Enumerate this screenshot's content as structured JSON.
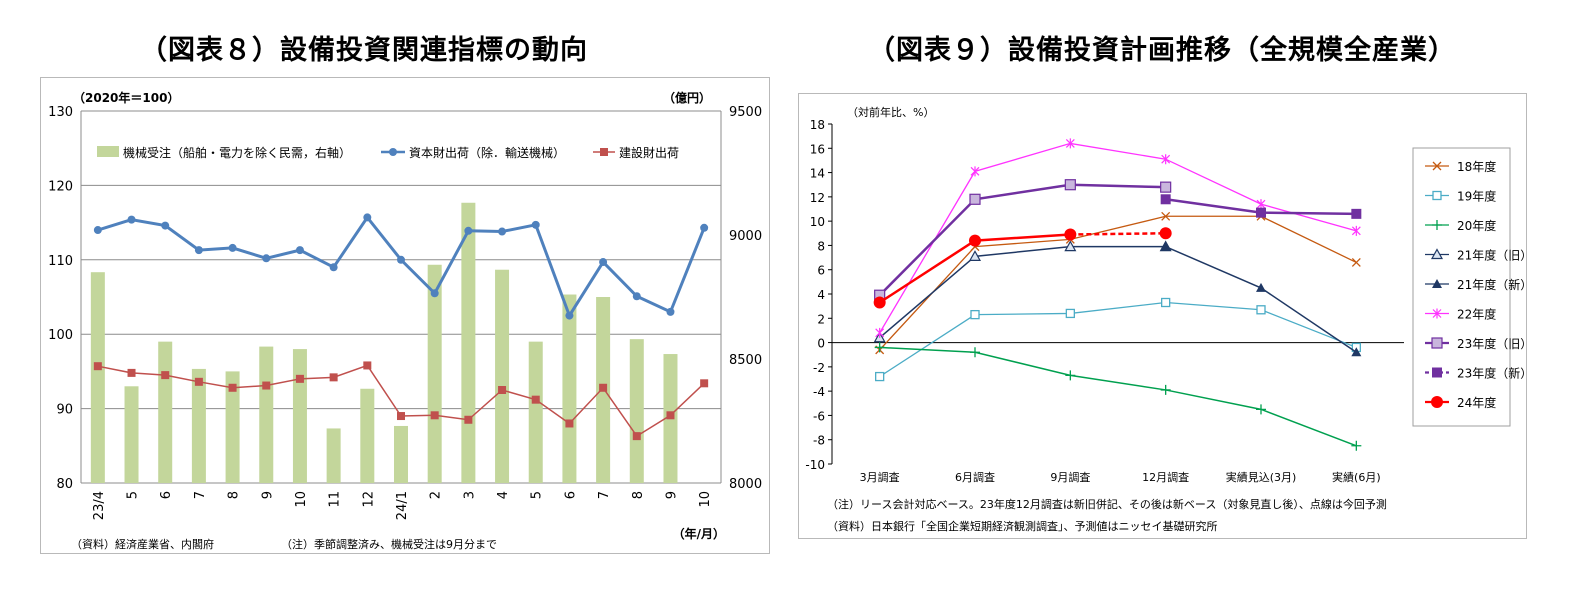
{
  "titles": {
    "left": "（図表８）設備投資関連指標の動向",
    "right": "（図表９）設備投資計画推移（全規模全産業）"
  },
  "left_notes": {
    "unit_left": "（2020年＝100）",
    "unit_right": "（億円）",
    "source": "（資料）経済産業省、内閣府",
    "note": "（注）季節調整済み、機械受注は9月分まで",
    "x_unit": "（年/月）"
  },
  "right_notes": {
    "unit": "（対前年比、%）",
    "note": "（注）リース会計対応ベース。23年度12月調査は新旧併記、その後は新ベース（対象見直し後）、点線は今回予測",
    "source": "（資料）日本銀行「全国企業短期経済観測調査」、予測値はニッセイ基礎研究所"
  },
  "colors": {
    "bar": "#c3d69b",
    "capital_goods": "#4f81bd",
    "construction": "#c0504d",
    "fy18": "#c55a11",
    "fy19": "#4bacc6",
    "fy20": "#00a04f",
    "fy21": "#1f3864",
    "fy22": "#ff33ff",
    "fy23": "#7030a0",
    "fy24": "#ff0000"
  },
  "chart_data": [
    {
      "type": "bar",
      "categories": [
        "23/4",
        "5",
        "6",
        "7",
        "8",
        "9",
        "10",
        "11",
        "12",
        "24/1",
        "2",
        "3",
        "4",
        "5",
        "6",
        "7",
        "8",
        "9",
        "10"
      ],
      "ylim_left": [
        80,
        130
      ],
      "yticks_left": [
        80,
        90,
        100,
        110,
        120,
        130
      ],
      "ylim_right": [
        8000,
        9500
      ],
      "yticks_right": [
        8000,
        8500,
        9000,
        9500
      ],
      "series": [
        {
          "name": "機械受注（船舶・電力を除く民需，右軸）",
          "type": "bar",
          "axis": "right",
          "values": [
            8850,
            8390,
            8570,
            8460,
            8450,
            8550,
            8540,
            8220,
            8380,
            8230,
            8880,
            9130,
            8860,
            8570,
            8760,
            8750,
            8580,
            8520,
            null
          ]
        },
        {
          "name": "資本財出荷（除．輸送機械）",
          "type": "line",
          "axis": "left",
          "values": [
            114.0,
            115.4,
            114.6,
            111.3,
            111.6,
            110.2,
            111.3,
            109.0,
            115.7,
            110.0,
            105.5,
            113.9,
            113.8,
            114.7,
            102.5,
            109.7,
            105.1,
            103.0,
            114.3
          ]
        },
        {
          "name": "建設財出荷",
          "type": "line",
          "axis": "left",
          "values": [
            95.7,
            94.8,
            94.5,
            93.6,
            92.8,
            93.1,
            94.0,
            94.2,
            95.8,
            89.0,
            89.1,
            88.5,
            92.5,
            91.2,
            88.0,
            92.8,
            86.3,
            89.1,
            93.4
          ]
        }
      ]
    },
    {
      "type": "line",
      "categories": [
        "3月調査",
        "6月調査",
        "9月調査",
        "12月調査",
        "実績見込(3月)",
        "実績(6月)"
      ],
      "ylim": [
        -10,
        18
      ],
      "yticks": [
        -10,
        -8,
        -6,
        -4,
        -2,
        0,
        2,
        4,
        6,
        8,
        10,
        12,
        14,
        16,
        18
      ],
      "series": [
        {
          "name": "18年度",
          "marker": "x",
          "values": [
            -0.6,
            7.9,
            8.5,
            10.4,
            10.4,
            6.6
          ]
        },
        {
          "name": "19年度",
          "marker": "square-open",
          "values": [
            -2.8,
            2.3,
            2.4,
            3.3,
            2.7,
            -0.4
          ]
        },
        {
          "name": "20年度",
          "marker": "plus",
          "values": [
            -0.4,
            -0.8,
            -2.7,
            -3.9,
            -5.5,
            -8.5
          ]
        },
        {
          "name": "21年度（旧）",
          "marker": "triangle-open",
          "values": [
            0.4,
            7.1,
            7.9,
            7.9,
            null,
            null
          ]
        },
        {
          "name": "21年度（新）",
          "marker": "triangle-filled",
          "values": [
            null,
            null,
            null,
            7.9,
            4.5,
            -0.8
          ]
        },
        {
          "name": "22年度",
          "marker": "star",
          "values": [
            0.8,
            14.1,
            16.4,
            15.1,
            11.4,
            9.2
          ]
        },
        {
          "name": "23年度（旧）",
          "marker": "square-light",
          "values": [
            3.9,
            11.8,
            13.0,
            12.8,
            null,
            null
          ]
        },
        {
          "name": "23年度（新）",
          "marker": "square-filled",
          "values": [
            null,
            null,
            null,
            11.8,
            10.7,
            10.6
          ]
        },
        {
          "name": "24年度",
          "marker": "circle-filled",
          "values": [
            3.3,
            8.4,
            8.9,
            9.0,
            null,
            null
          ]
        }
      ]
    }
  ]
}
